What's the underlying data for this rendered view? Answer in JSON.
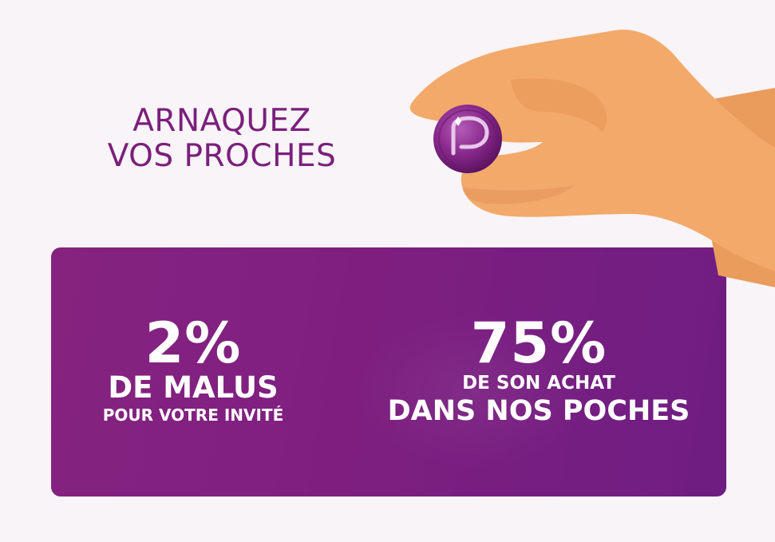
{
  "headline": {
    "line1": "ARNAQUEZ",
    "line2": "VOS PROCHES"
  },
  "stats": {
    "left": {
      "value": "2%",
      "title": "DE MALUS",
      "subtitle": "POUR VOTRE INVITÉ"
    },
    "right": {
      "value": "75%",
      "subtitle": "DE SON ACHAT",
      "title": "DANS NOS POCHES"
    }
  },
  "colors": {
    "background": "#f8f4f7",
    "headline": "#7a1f7c",
    "panel": "#7e1f80",
    "text_on_panel": "#ffffff",
    "skin": "#f2a96a",
    "coin": "#8a2a8e"
  },
  "icons": {
    "hand": "hand-holding-coin",
    "coin": "coin-logo-icon"
  }
}
